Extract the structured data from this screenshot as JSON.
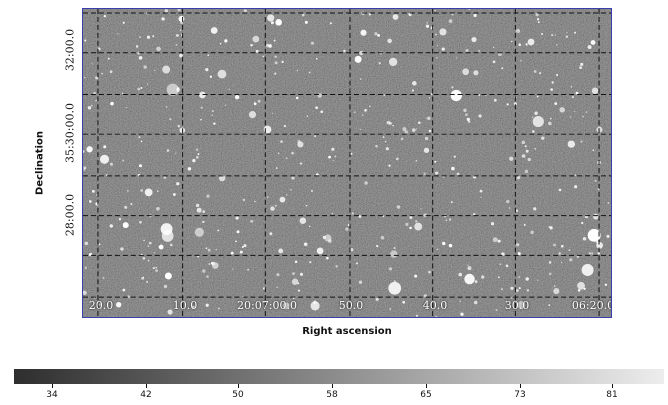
{
  "axes": {
    "xlabel": "Right ascension",
    "ylabel": "Declination"
  },
  "ra_ticks": [
    "20.0",
    "10.0",
    "20:07:00.0",
    "50.0",
    "40.0",
    "30.0",
    "06:20.0"
  ],
  "dec_ticks": [
    "32:00.0",
    "35:30:00.0",
    "28:00.0"
  ],
  "colorbar": {
    "ticks": [
      "34",
      "42",
      "50",
      "58",
      "65",
      "73",
      "81"
    ],
    "colors": {
      "min": "#2e2e2e",
      "max": "#ededed"
    }
  },
  "image": {
    "background_color": "#4a4a4a",
    "grid_color": "#111111",
    "frame_color": "#3a3fb0",
    "star_color": "#ffffff"
  }
}
